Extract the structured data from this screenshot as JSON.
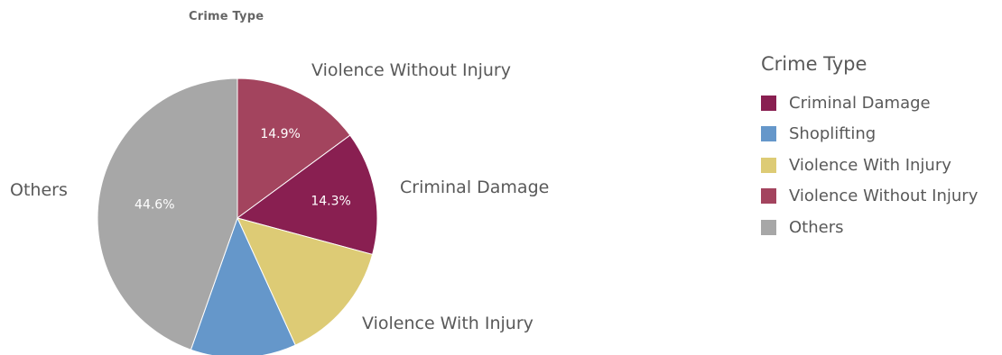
{
  "chart_data": {
    "type": "pie",
    "title": "Crime Type",
    "legend_title": "Crime Type",
    "legend_position": "right",
    "slices": [
      {
        "name": "Violence Without Injury",
        "value": 14.9,
        "label": "14.9%",
        "color": "#A3445E"
      },
      {
        "name": "Criminal Damage",
        "value": 14.3,
        "label": "14.3%",
        "color": "#891F51"
      },
      {
        "name": "Violence With Injury",
        "value": 14.0,
        "label": "",
        "color": "#DDCB75"
      },
      {
        "name": "Shoplifting",
        "value": 12.2,
        "label": "",
        "color": "#6597CA"
      },
      {
        "name": "Others",
        "value": 44.6,
        "label": "44.6%",
        "color": "#A7A7A7"
      }
    ],
    "legend": [
      {
        "name": "Criminal Damage",
        "color": "#891F51"
      },
      {
        "name": "Shoplifting",
        "color": "#6597CA"
      },
      {
        "name": "Violence With Injury",
        "color": "#DDCB75"
      },
      {
        "name": "Violence Without Injury",
        "color": "#A3445E"
      },
      {
        "name": "Others",
        "color": "#A7A7A7"
      }
    ]
  }
}
